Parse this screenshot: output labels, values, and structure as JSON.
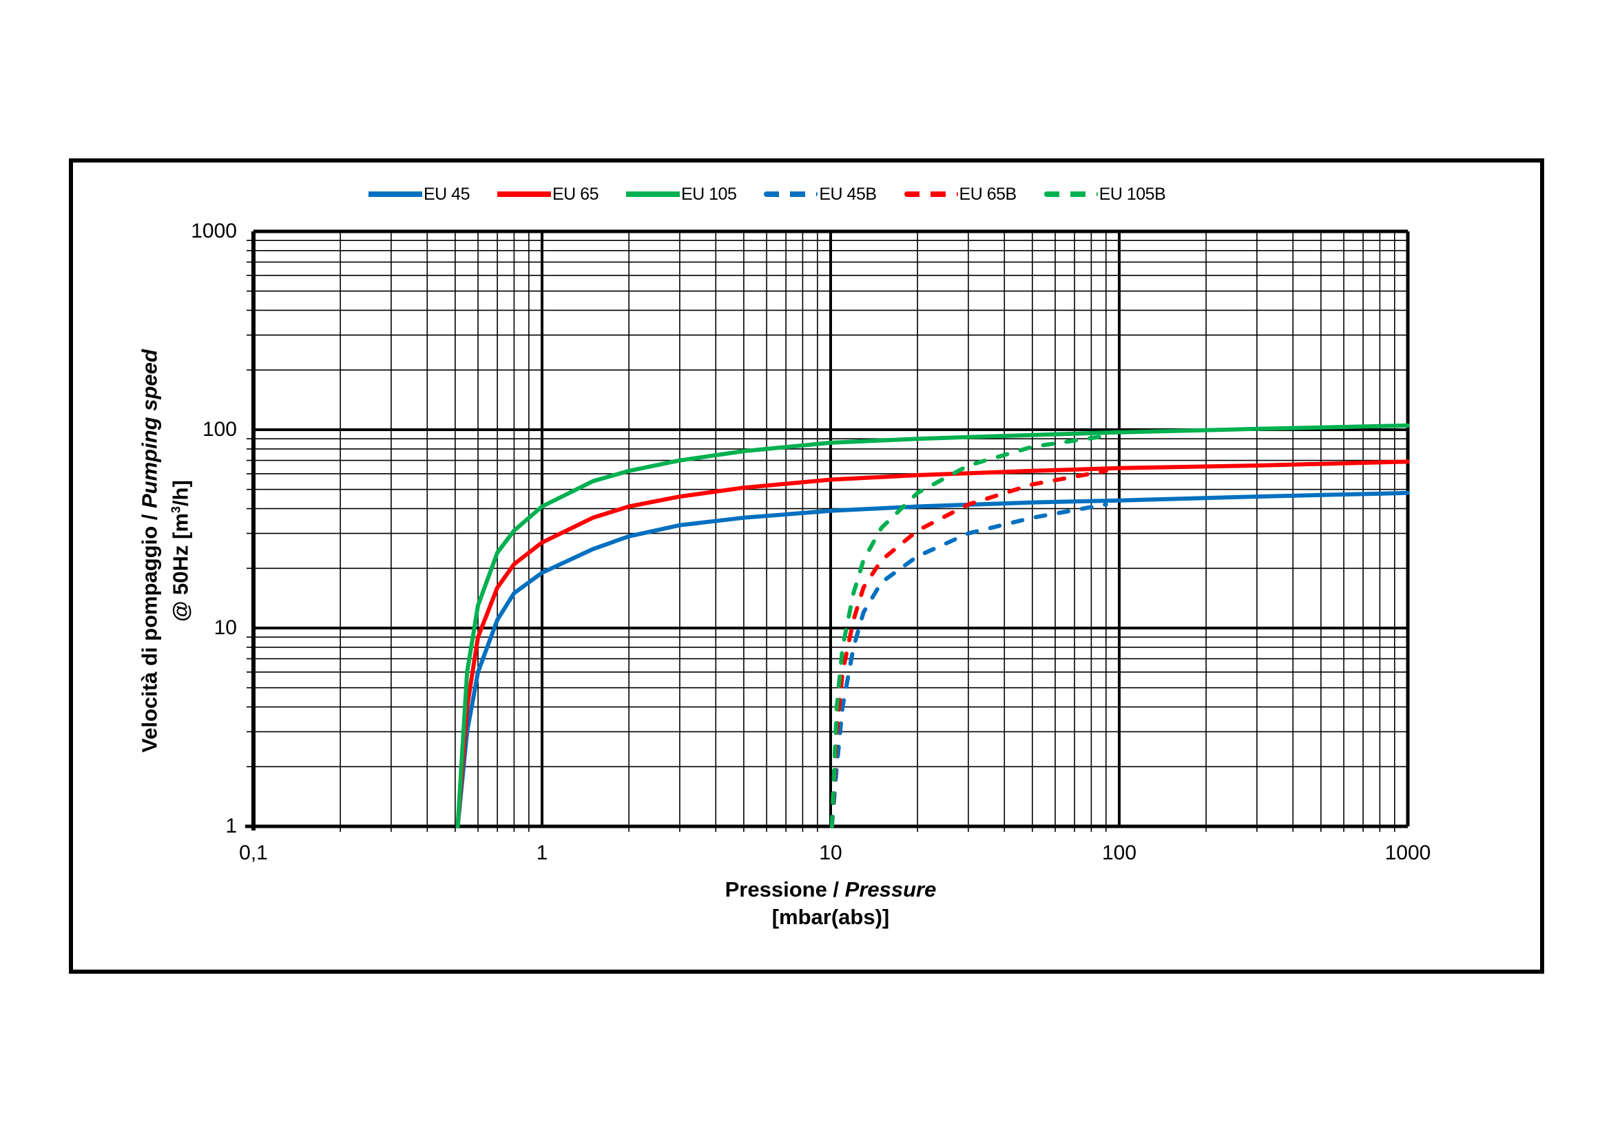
{
  "chart_data": {
    "type": "line",
    "title": "",
    "xlabel": "Pressione / Pressure [mbar(abs)]",
    "ylabel": "Velocità di pompaggio / Pumping speed @ 50Hz [m3/h]",
    "xscale": "log",
    "yscale": "log",
    "xlim": [
      0.1,
      1000
    ],
    "ylim": [
      1,
      1000
    ],
    "grid": true,
    "legend_position": "top",
    "x_ticks": [
      "0,1",
      "1",
      "10",
      "100",
      "1000"
    ],
    "y_ticks": [
      "1",
      "10",
      "100",
      "1000"
    ],
    "series": [
      {
        "name": "EU 45",
        "color": "#0070C0",
        "style": "solid",
        "x": [
          0.51,
          0.55,
          0.6,
          0.7,
          0.8,
          1,
          1.5,
          2,
          3,
          5,
          10,
          20,
          50,
          100,
          300,
          1000
        ],
        "y": [
          1,
          3,
          6,
          11,
          15,
          19,
          25,
          29,
          33,
          36,
          39,
          41,
          43,
          44,
          46,
          48
        ]
      },
      {
        "name": "EU 65",
        "color": "#FF0000",
        "style": "solid",
        "x": [
          0.51,
          0.55,
          0.6,
          0.7,
          0.8,
          1,
          1.5,
          2,
          3,
          5,
          10,
          20,
          50,
          100,
          300,
          1000
        ],
        "y": [
          1,
          4,
          9,
          16,
          21,
          27,
          36,
          41,
          46,
          51,
          56,
          59,
          62,
          64,
          66,
          69
        ]
      },
      {
        "name": "EU 105",
        "color": "#00B050",
        "style": "solid",
        "x": [
          0.51,
          0.55,
          0.6,
          0.7,
          0.8,
          1,
          1.5,
          2,
          3,
          5,
          10,
          20,
          50,
          100,
          300,
          1000
        ],
        "y": [
          1,
          6,
          13,
          24,
          31,
          41,
          55,
          62,
          70,
          78,
          86,
          90,
          94,
          97,
          101,
          105
        ]
      },
      {
        "name": "EU 45B",
        "color": "#0070C0",
        "style": "dashed",
        "x": [
          10.1,
          10.5,
          11,
          12,
          13,
          15,
          20,
          30,
          50,
          90
        ],
        "y": [
          1,
          2,
          4,
          8,
          12,
          17,
          23,
          30,
          36,
          42
        ]
      },
      {
        "name": "EU 65B",
        "color": "#FF0000",
        "style": "dashed",
        "x": [
          10.1,
          10.5,
          11,
          12,
          13,
          15,
          20,
          30,
          50,
          90
        ],
        "y": [
          1,
          3,
          6,
          11,
          16,
          22,
          31,
          42,
          53,
          62
        ]
      },
      {
        "name": "EU 105B",
        "color": "#00B050",
        "style": "dashed",
        "x": [
          10.1,
          10.5,
          11,
          12,
          13,
          15,
          20,
          30,
          50,
          90
        ],
        "y": [
          1,
          4,
          8,
          15,
          22,
          32,
          48,
          66,
          82,
          93
        ]
      }
    ]
  },
  "axes": {
    "x_title_main": "Pressione / ",
    "x_title_italic": "Pressure",
    "x_unit": "[mbar(abs)]",
    "y_title_main": "Velocità di pompaggio / ",
    "y_title_italic": "Pumping speed",
    "y_unit_prefix": "@ 50Hz [m",
    "y_unit_sup": "3",
    "y_unit_suffix": "/h]"
  },
  "legend": [
    {
      "label": "EU 45",
      "color": "#0070C0",
      "style": "solid"
    },
    {
      "label": "EU 65",
      "color": "#FF0000",
      "style": "solid"
    },
    {
      "label": "EU 105",
      "color": "#00B050",
      "style": "solid"
    },
    {
      "label": "EU 45B",
      "color": "#0070C0",
      "style": "dashed"
    },
    {
      "label": "EU 65B",
      "color": "#FF0000",
      "style": "dashed"
    },
    {
      "label": "EU 105B",
      "color": "#00B050",
      "style": "dashed"
    }
  ]
}
